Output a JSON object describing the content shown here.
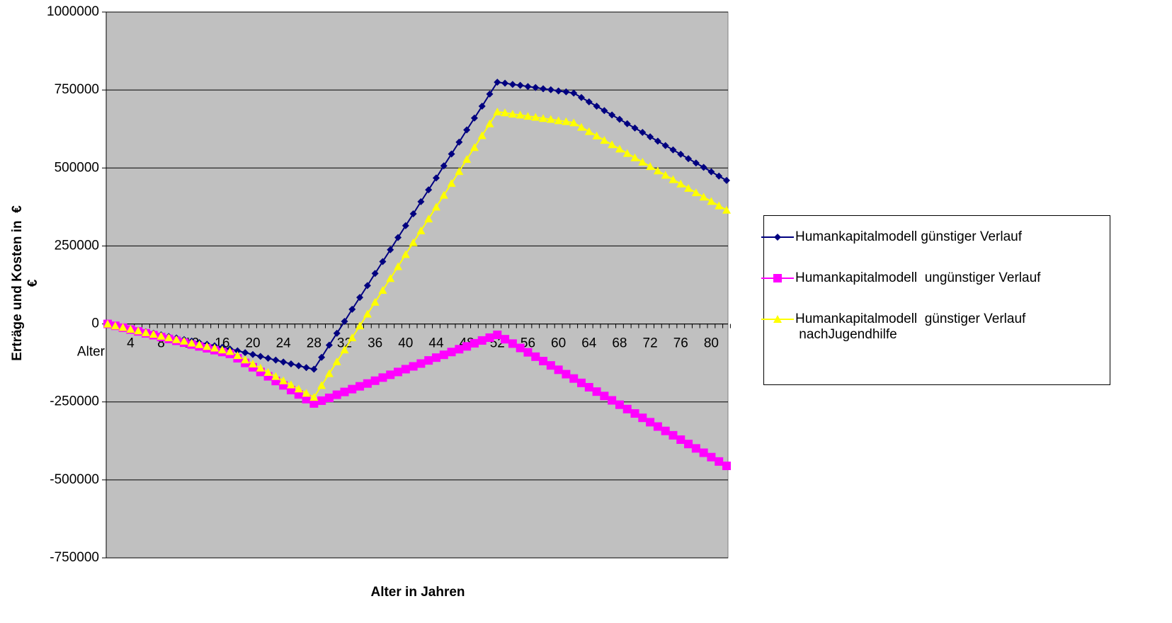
{
  "chart_data": {
    "type": "line",
    "y_label": "Erträge und Kosten in  €\n€",
    "x_label": "Alter in Jahren",
    "categories": [
      "Alter",
      null,
      null,
      null,
      4,
      null,
      null,
      null,
      8,
      null,
      null,
      null,
      12,
      null,
      null,
      null,
      16,
      null,
      null,
      null,
      20,
      null,
      null,
      null,
      24,
      null,
      null,
      null,
      28,
      null,
      null,
      null,
      32,
      null,
      null,
      null,
      36,
      null,
      null,
      null,
      40,
      null,
      null,
      null,
      44,
      null,
      null,
      null,
      48,
      null,
      null,
      null,
      52,
      null,
      null,
      null,
      56,
      null,
      null,
      null,
      60,
      null,
      null,
      null,
      64,
      null,
      null,
      null,
      68,
      null,
      null,
      null,
      72,
      null,
      null,
      null,
      76,
      null,
      null,
      null,
      80,
      null,
      null
    ],
    "series": [
      {
        "name": "Humankapitalmodell günstiger Verlauf",
        "color": "#000080",
        "marker": "diamond",
        "values": [
          null,
          0,
          -5000,
          -10000,
          -15000,
          -20000,
          -25000,
          -30000,
          -35000,
          -40000,
          -45000,
          -50000,
          -55000,
          -60000,
          -65000,
          -70000,
          -75000,
          -80000,
          -86000,
          -92000,
          -98000,
          -104000,
          -110000,
          -116000,
          -122000,
          -128000,
          -134000,
          -140000,
          -145000,
          -107000,
          -68000,
          -30000,
          8000,
          47000,
          85000,
          123000,
          162000,
          200000,
          238000,
          277000,
          315000,
          353000,
          392000,
          430000,
          468000,
          507000,
          545000,
          583000,
          622000,
          660000,
          698000,
          737000,
          775000,
          772000,
          768000,
          765000,
          761000,
          758000,
          754000,
          751000,
          747000,
          744000,
          740000,
          726000,
          712000,
          698000,
          684000,
          670000,
          656000,
          642000,
          628000,
          614000,
          600000,
          586000,
          572000,
          558000,
          544000,
          530000,
          516000,
          502000,
          488000,
          474000,
          460000
        ]
      },
      {
        "name": "Humankapitalmodell  ungünstiger Verlauf",
        "color": "#FF00FF",
        "marker": "square",
        "values": [
          null,
          0,
          -6000,
          -12000,
          -18000,
          -24000,
          -30000,
          -36000,
          -42000,
          -48000,
          -54000,
          -60000,
          -66000,
          -72000,
          -78000,
          -84000,
          -90000,
          -96000,
          -110000,
          -125000,
          -139000,
          -154000,
          -168000,
          -183000,
          -197000,
          -212000,
          -226000,
          -241000,
          -255000,
          -246000,
          -237000,
          -227000,
          -218000,
          -209000,
          -200000,
          -191000,
          -182000,
          -172000,
          -163000,
          -154000,
          -145000,
          -136000,
          -127000,
          -117000,
          -108000,
          -99000,
          -90000,
          -81000,
          -72000,
          -62000,
          -53000,
          -44000,
          -35000,
          -49000,
          -63000,
          -77000,
          -91000,
          -105000,
          -119000,
          -133000,
          -147000,
          -161000,
          -175000,
          -189000,
          -203000,
          -217000,
          -231000,
          -245000,
          -259000,
          -273000,
          -287000,
          -301000,
          -315000,
          -329000,
          -343000,
          -357000,
          -371000,
          -385000,
          -399000,
          -413000,
          -427000,
          -441000,
          -455000
        ]
      },
      {
        "name": "Humankapitalmodell  günstiger Verlauf\n nachJugendhilfe",
        "color": "#FFFF00",
        "marker": "triangle",
        "values": [
          null,
          0,
          -6000,
          -11000,
          -17000,
          -22000,
          -28000,
          -33000,
          -39000,
          -44000,
          -50000,
          -55000,
          -61000,
          -66000,
          -72000,
          -77000,
          -83000,
          -88000,
          -101000,
          -115000,
          -128000,
          -141000,
          -155000,
          -168000,
          -182000,
          -195000,
          -208000,
          -222000,
          -235000,
          -197000,
          -159000,
          -121000,
          -83000,
          -44000,
          -6000,
          32000,
          70000,
          108000,
          146000,
          184000,
          223000,
          261000,
          299000,
          337000,
          375000,
          413000,
          451000,
          489000,
          528000,
          566000,
          604000,
          642000,
          680000,
          677000,
          673000,
          670000,
          666000,
          663000,
          659000,
          656000,
          652000,
          649000,
          645000,
          631000,
          617000,
          603000,
          589000,
          575000,
          561000,
          547000,
          533000,
          519000,
          505000,
          491000,
          477000,
          463000,
          449000,
          435000,
          421000,
          407000,
          393000,
          379000,
          365000
        ]
      }
    ],
    "ylim": [
      -750000,
      1000000
    ],
    "yticks": [
      -750000,
      -500000,
      -250000,
      0,
      250000,
      500000,
      750000,
      1000000
    ],
    "grid": true,
    "plot_color": "#C0C0C0",
    "legend": "right"
  }
}
